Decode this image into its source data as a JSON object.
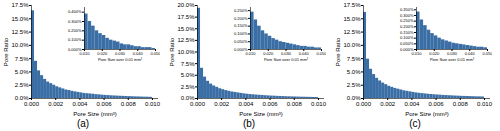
{
  "chart_data": [
    {
      "type": "histogram",
      "title": "(a)",
      "x_label": "Pore Size (mm³)",
      "y_label": "Pore Ratio",
      "color": "#3a6ea5",
      "bins": [
        0,
        0.00025,
        0.0005,
        0.00075,
        0.001,
        0.00125,
        0.0015,
        0.00175,
        0.002,
        0.00225,
        0.0025,
        0.00275,
        0.003,
        0.00325,
        0.0035,
        0.00375,
        0.004,
        0.00425,
        0.0045,
        0.00475,
        0.005,
        0.00525,
        0.0055,
        0.00575,
        0.006,
        0.00625,
        0.0065,
        0.00675,
        0.007,
        0.00725,
        0.0075,
        0.00775,
        0.008,
        0.00825,
        0.0085,
        0.00875,
        0.009,
        0.00925,
        0.0095,
        0.00975,
        0.01
      ],
      "counts": [
        16.5,
        7.0,
        5.2,
        4.3,
        3.6,
        3.1,
        2.8,
        2.5,
        2.2,
        2.0,
        1.8,
        1.6,
        1.5,
        1.35,
        1.25,
        1.15,
        1.05,
        0.95,
        0.9,
        0.85,
        0.8,
        0.72,
        0.68,
        0.62,
        0.58,
        0.55,
        0.5,
        0.48,
        0.45,
        0.42,
        0.4,
        0.37,
        0.35,
        0.33,
        0.3,
        0.29,
        0.27,
        0.25,
        0.24,
        0.22
      ],
      "xlim": [
        0,
        0.0105
      ],
      "xticks": [
        {
          "value": 0,
          "label": "0.000"
        },
        0.002,
        0.004,
        0.006,
        0.008,
        {
          "value": 0.01,
          "label": "0.010"
        }
      ],
      "ylim": [
        0,
        17.5
      ],
      "yticks": [
        {
          "value": 0,
          "label": "0.0%"
        },
        {
          "value": 2.5,
          "label": "2.5%"
        },
        {
          "value": 5,
          "label": "5.0%"
        },
        {
          "value": 7.5,
          "label": "7.5%"
        },
        {
          "value": 10,
          "label": "10.0%"
        },
        {
          "value": 12.5,
          "label": "12.5%"
        },
        {
          "value": 15,
          "label": "15.0%"
        },
        {
          "value": 17.5,
          "label": "17.5%"
        }
      ],
      "inset": {
        "type": "histogram",
        "x_label": "Pore Size over 0.01 mm³",
        "color": "#3a6ea5",
        "bins": [
          0.01,
          0.012,
          0.014,
          0.016,
          0.018,
          0.02,
          0.022,
          0.024,
          0.026,
          0.028,
          0.03,
          0.032,
          0.034,
          0.036,
          0.038,
          0.04,
          0.042,
          0.044,
          0.046,
          0.048,
          0.05
        ],
        "counts": [
          0.38,
          0.3,
          0.25,
          0.2,
          0.17,
          0.15,
          0.12,
          0.1,
          0.09,
          0.08,
          0.06,
          0.05,
          0.05,
          0.04,
          0.03,
          0.03,
          0.02,
          0.02,
          0.02,
          0.01
        ],
        "xlim": [
          0.01,
          0.05
        ],
        "xticks": [
          {
            "value": 0.01,
            "label": "0.010"
          },
          {
            "value": 0.02,
            "label": "0.020"
          },
          {
            "value": 0.03,
            "label": "0.030"
          },
          {
            "value": 0.04,
            "label": "0.040"
          },
          {
            "value": 0.05,
            "label": "0.050"
          }
        ],
        "ylim": [
          0,
          0.45
        ],
        "yticks": [
          {
            "value": 0,
            "label": "0.000%"
          },
          {
            "value": 0.1,
            "label": "0.100%"
          },
          {
            "value": 0.2,
            "label": "0.200%"
          },
          {
            "value": 0.3,
            "label": "0.300%"
          },
          {
            "value": 0.4,
            "label": "0.400%"
          }
        ]
      }
    },
    {
      "type": "histogram",
      "title": "(b)",
      "x_label": "Pore Size (mm³)",
      "y_label": "Pore Ratio",
      "color": "#3a6ea5",
      "bins": [
        0,
        0.00025,
        0.0005,
        0.00075,
        0.001,
        0.00125,
        0.0015,
        0.00175,
        0.002,
        0.00225,
        0.0025,
        0.00275,
        0.003,
        0.00325,
        0.0035,
        0.00375,
        0.004,
        0.00425,
        0.0045,
        0.00475,
        0.005,
        0.00525,
        0.0055,
        0.00575,
        0.006,
        0.00625,
        0.0065,
        0.00675,
        0.007,
        0.00725,
        0.0075,
        0.00775,
        0.008,
        0.00825,
        0.0085,
        0.00875,
        0.009,
        0.00925,
        0.0095,
        0.00975,
        0.01
      ],
      "counts": [
        19.4,
        6.5,
        4.6,
        3.7,
        3.1,
        2.7,
        2.4,
        2.1,
        1.9,
        1.7,
        1.55,
        1.4,
        1.3,
        1.2,
        1.1,
        1.0,
        0.92,
        0.85,
        0.8,
        0.74,
        0.7,
        0.65,
        0.6,
        0.56,
        0.52,
        0.5,
        0.46,
        0.44,
        0.41,
        0.38,
        0.36,
        0.34,
        0.32,
        0.3,
        0.28,
        0.27,
        0.25,
        0.24,
        0.22,
        0.21
      ],
      "xlim": [
        0,
        0.0105
      ],
      "xticks": [
        {
          "value": 0,
          "label": "0.000"
        },
        0.002,
        0.004,
        0.006,
        0.008,
        {
          "value": 0.01,
          "label": "0.010"
        }
      ],
      "ylim": [
        0,
        20
      ],
      "yticks": [
        {
          "value": 0,
          "label": "0.0%"
        },
        {
          "value": 2.5,
          "label": "2.5%"
        },
        {
          "value": 5,
          "label": "5.0%"
        },
        {
          "value": 7.5,
          "label": "7.5%"
        },
        {
          "value": 10,
          "label": "10.0%"
        },
        {
          "value": 12.5,
          "label": "12.5%"
        },
        {
          "value": 15,
          "label": "15.0%"
        },
        {
          "value": 17.5,
          "label": "17.5%"
        },
        {
          "value": 20,
          "label": "20.0%"
        }
      ],
      "inset": {
        "type": "histogram",
        "x_label": "Pore Size over 0.01 mm³",
        "color": "#3a6ea5",
        "bins": [
          0.01,
          0.012,
          0.014,
          0.016,
          0.018,
          0.02,
          0.022,
          0.024,
          0.026,
          0.028,
          0.03,
          0.032,
          0.034,
          0.036,
          0.038,
          0.04,
          0.042,
          0.044,
          0.046,
          0.048,
          0.05
        ],
        "counts": [
          0.24,
          0.19,
          0.15,
          0.12,
          0.1,
          0.085,
          0.07,
          0.06,
          0.05,
          0.045,
          0.04,
          0.035,
          0.03,
          0.025,
          0.02,
          0.02,
          0.015,
          0.015,
          0.01,
          0.01
        ],
        "xlim": [
          0.01,
          0.05
        ],
        "xticks": [
          {
            "value": 0.01,
            "label": "0.010"
          },
          {
            "value": 0.02,
            "label": "0.020"
          },
          {
            "value": 0.03,
            "label": "0.030"
          },
          {
            "value": 0.04,
            "label": "0.040"
          },
          {
            "value": 0.05,
            "label": "0.050"
          }
        ],
        "ylim": [
          0,
          0.27
        ],
        "yticks": [
          {
            "value": 0,
            "label": "0.000%"
          },
          {
            "value": 0.05,
            "label": "0.050%"
          },
          {
            "value": 0.1,
            "label": "0.100%"
          },
          {
            "value": 0.15,
            "label": "0.150%"
          },
          {
            "value": 0.2,
            "label": "0.200%"
          },
          {
            "value": 0.25,
            "label": "0.250%"
          }
        ]
      }
    },
    {
      "type": "histogram",
      "title": "(c)",
      "x_label": "Pore Size (mm³)",
      "y_label": "Pore Ratio",
      "color": "#3a6ea5",
      "bins": [
        0,
        0.00025,
        0.0005,
        0.00075,
        0.001,
        0.00125,
        0.0015,
        0.00175,
        0.002,
        0.00225,
        0.0025,
        0.00275,
        0.003,
        0.00325,
        0.0035,
        0.00375,
        0.004,
        0.00425,
        0.0045,
        0.00475,
        0.005,
        0.00525,
        0.0055,
        0.00575,
        0.006,
        0.00625,
        0.0065,
        0.00675,
        0.007,
        0.00725,
        0.0075,
        0.00775,
        0.008,
        0.00825,
        0.0085,
        0.00875,
        0.009,
        0.00925,
        0.0095,
        0.00975,
        0.01
      ],
      "counts": [
        16.2,
        7.4,
        5.5,
        4.5,
        3.8,
        3.3,
        2.9,
        2.6,
        2.3,
        2.1,
        1.9,
        1.75,
        1.6,
        1.45,
        1.35,
        1.25,
        1.15,
        1.05,
        0.98,
        0.92,
        0.86,
        0.8,
        0.75,
        0.7,
        0.66,
        0.62,
        0.58,
        0.55,
        0.52,
        0.49,
        0.46,
        0.43,
        0.41,
        0.39,
        0.37,
        0.35,
        0.33,
        0.31,
        0.3,
        0.28
      ],
      "xlim": [
        0,
        0.0105
      ],
      "xticks": [
        {
          "value": 0,
          "label": "0.000"
        },
        0.002,
        0.004,
        0.006,
        0.008,
        {
          "value": 0.01,
          "label": "0.010"
        }
      ],
      "ylim": [
        0,
        17.5
      ],
      "yticks": [
        {
          "value": 0,
          "label": "0.0%"
        },
        {
          "value": 2.5,
          "label": "2.5%"
        },
        {
          "value": 5,
          "label": "5.0%"
        },
        {
          "value": 7.5,
          "label": "7.5%"
        },
        {
          "value": 10,
          "label": "10.0%"
        },
        {
          "value": 12.5,
          "label": "12.5%"
        },
        {
          "value": 15,
          "label": "15.0%"
        },
        {
          "value": 17.5,
          "label": "17.5%"
        }
      ],
      "inset": {
        "type": "histogram",
        "x_label": "Pore Size over 0.01 mm³",
        "color": "#3a6ea5",
        "bins": [
          0.01,
          0.012,
          0.014,
          0.016,
          0.018,
          0.02,
          0.022,
          0.024,
          0.026,
          0.028,
          0.03,
          0.032,
          0.034,
          0.036,
          0.038,
          0.04,
          0.042,
          0.044,
          0.046,
          0.048,
          0.05
        ],
        "counts": [
          0.33,
          0.26,
          0.21,
          0.17,
          0.14,
          0.12,
          0.1,
          0.085,
          0.075,
          0.065,
          0.055,
          0.05,
          0.045,
          0.04,
          0.035,
          0.03,
          0.025,
          0.02,
          0.02,
          0.015
        ],
        "xlim": [
          0.01,
          0.05
        ],
        "xticks": [
          {
            "value": 0.01,
            "label": "0.010"
          },
          {
            "value": 0.02,
            "label": "0.020"
          },
          {
            "value": 0.03,
            "label": "0.030"
          },
          {
            "value": 0.04,
            "label": "0.040"
          },
          {
            "value": 0.05,
            "label": "0.050"
          }
        ],
        "ylim": [
          0,
          0.37
        ],
        "yticks": [
          {
            "value": 0,
            "label": "0.000%"
          },
          {
            "value": 0.05,
            "label": "0.050%"
          },
          {
            "value": 0.1,
            "label": "0.100%"
          },
          {
            "value": 0.15,
            "label": "0.150%"
          },
          {
            "value": 0.2,
            "label": "0.200%"
          },
          {
            "value": 0.25,
            "label": "0.250%"
          },
          {
            "value": 0.3,
            "label": "0.300%"
          },
          {
            "value": 0.35,
            "label": "0.350%"
          }
        ]
      }
    }
  ]
}
